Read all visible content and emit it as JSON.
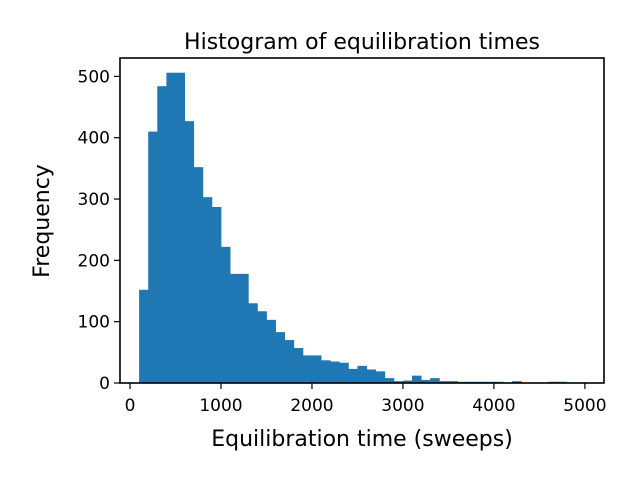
{
  "chart_data": {
    "type": "bar",
    "title": "Histogram of equilibration times",
    "xlabel": "Equilibration time (sweeps)",
    "ylabel": "Frequency",
    "xlim": [
      -110,
      5210
    ],
    "ylim": [
      0,
      530
    ],
    "x_ticks": [
      0,
      1000,
      2000,
      3000,
      4000,
      5000
    ],
    "x_tick_labels": [
      "0",
      "1000",
      "2000",
      "3000",
      "4000",
      "5000"
    ],
    "y_ticks": [
      0,
      100,
      200,
      300,
      400,
      500
    ],
    "y_tick_labels": [
      "0",
      "100",
      "200",
      "300",
      "400",
      "500"
    ],
    "bar_color": "#1f77b4",
    "bin_width": 100,
    "bin_starts": [
      100,
      200,
      300,
      400,
      500,
      600,
      700,
      800,
      900,
      1000,
      1100,
      1200,
      1300,
      1400,
      1500,
      1600,
      1700,
      1800,
      1900,
      2000,
      2100,
      2200,
      2300,
      2400,
      2500,
      2600,
      2700,
      2800,
      2900,
      3000,
      3100,
      3200,
      3300,
      3400,
      3500,
      3600,
      3700,
      3800,
      3900,
      4000,
      4100,
      4200,
      4300,
      4400,
      4500,
      4600,
      4700,
      4800
    ],
    "values": [
      152,
      410,
      484,
      506,
      506,
      427,
      352,
      303,
      287,
      222,
      178,
      178,
      130,
      117,
      103,
      83,
      70,
      57,
      45,
      45,
      37,
      35,
      33,
      23,
      28,
      22,
      19,
      8,
      3,
      4,
      12,
      5,
      8,
      3,
      3,
      2,
      2,
      2,
      2,
      2,
      0,
      3,
      0,
      0,
      0,
      2,
      2,
      0
    ],
    "grid": false
  }
}
